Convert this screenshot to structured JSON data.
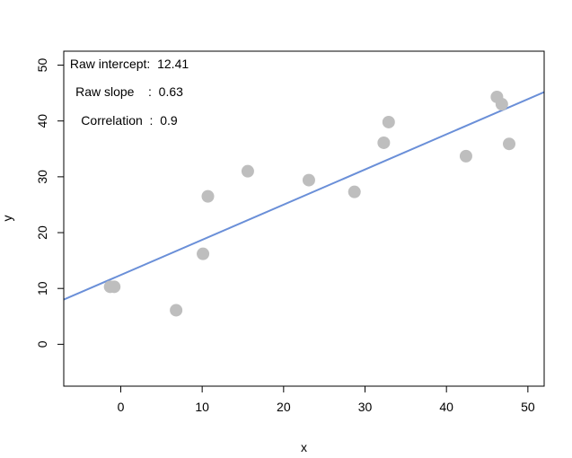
{
  "chart_data": {
    "type": "scatter",
    "xlabel": "x",
    "ylabel": "y",
    "xlim": [
      -7,
      52
    ],
    "ylim": [
      -7.5,
      52.5
    ],
    "x_ticks": [
      0,
      10,
      20,
      30,
      40,
      50
    ],
    "y_ticks": [
      0,
      10,
      20,
      30,
      40,
      50
    ],
    "grid": false,
    "points": [
      {
        "x": -1.3,
        "y": 10.3
      },
      {
        "x": -0.8,
        "y": 10.3
      },
      {
        "x": 6.8,
        "y": 6.1
      },
      {
        "x": 10.1,
        "y": 16.2
      },
      {
        "x": 10.7,
        "y": 26.5
      },
      {
        "x": 15.6,
        "y": 31.0
      },
      {
        "x": 23.1,
        "y": 29.4
      },
      {
        "x": 28.7,
        "y": 27.3
      },
      {
        "x": 32.3,
        "y": 36.1
      },
      {
        "x": 32.9,
        "y": 39.8
      },
      {
        "x": 42.4,
        "y": 33.7
      },
      {
        "x": 46.2,
        "y": 44.3
      },
      {
        "x": 46.8,
        "y": 43.0
      },
      {
        "x": 47.7,
        "y": 35.9
      }
    ],
    "regression": {
      "intercept": 12.41,
      "slope": 0.63
    },
    "point_color": "#BEBEBE",
    "line_color": "#6A8FD8",
    "annotations": [
      {
        "id": "intercept",
        "text": "Raw intercept:  12.41"
      },
      {
        "id": "slope",
        "text": "Raw slope    :  0.63"
      },
      {
        "id": "correlation",
        "text": "Correlation  :  0.9"
      }
    ]
  }
}
